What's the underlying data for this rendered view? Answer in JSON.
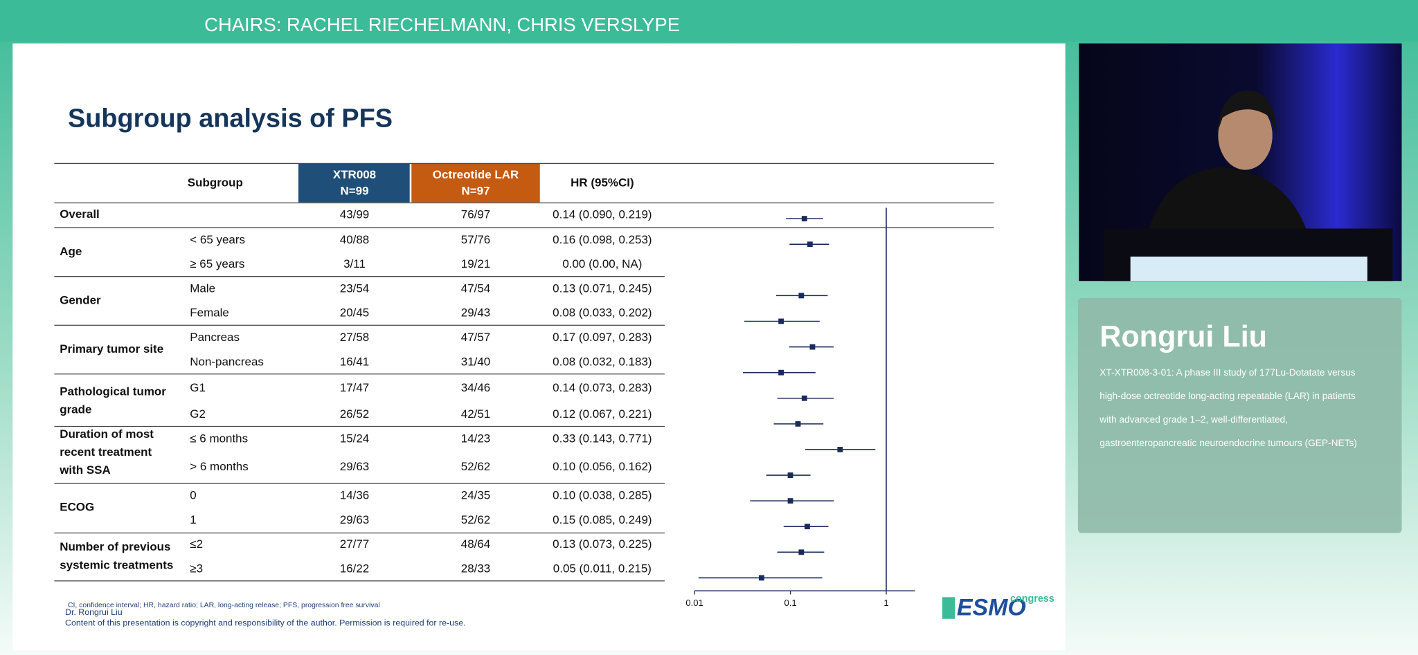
{
  "header": {
    "chairs": "CHAIRS: RACHEL RIECHELMANN, CHRIS VERSLYPE"
  },
  "slide": {
    "title": "Subgroup analysis of PFS",
    "table": {
      "columns": [
        [
          "Subgroup"
        ],
        [
          "XTR008",
          "N=99"
        ],
        [
          "Octreotide LAR",
          "N=97"
        ],
        [
          "HR (95%CI)"
        ]
      ],
      "groups": [
        {
          "name": "Overall",
          "rows": [
            {
              "n1": "43/99",
              "n2": "76/97"
            }
          ]
        },
        {
          "name": "Age",
          "rows": [
            {
              "subgroup": "< 65 years",
              "n1": "40/88",
              "n2": "57/76"
            },
            {
              "subgroup": "≥ 65 years",
              "n1": "3/11",
              "n2": "19/21"
            }
          ]
        },
        {
          "name": "Gender",
          "rows": [
            {
              "subgroup": "Male",
              "n1": "23/54",
              "n2": "47/54"
            },
            {
              "subgroup": "Female",
              "n1": "20/45",
              "n2": "29/43"
            }
          ]
        },
        {
          "name": "Primary tumor site",
          "rows": [
            {
              "subgroup": "Pancreas",
              "n1": "27/58",
              "n2": "47/57"
            },
            {
              "subgroup": "Non-pancreas",
              "n1": "16/41",
              "n2": "31/40"
            }
          ]
        },
        {
          "name": "Pathological tumor grade",
          "rows": [
            {
              "subgroup": "G1",
              "n1": "17/47",
              "n2": "34/46"
            },
            {
              "subgroup": "G2",
              "n1": "26/52",
              "n2": "42/51"
            }
          ]
        },
        {
          "name": "Duration of most recent treatment with SSA",
          "rows": [
            {
              "subgroup": "≤ 6 months",
              "n1": "15/24",
              "n2": "14/23"
            },
            {
              "subgroup": "> 6 months",
              "n1": "29/63",
              "n2": "52/62"
            }
          ]
        },
        {
          "name": "ECOG",
          "rows": [
            {
              "subgroup": "0",
              "n1": "14/36",
              "n2": "24/35"
            },
            {
              "subgroup": "1",
              "n1": "29/63",
              "n2": "52/62"
            }
          ]
        },
        {
          "name": "Number of previous systemic treatments",
          "rows": [
            {
              "subgroup": "≤2",
              "n1": "27/77",
              "n2": "48/64"
            },
            {
              "subgroup": "≥3",
              "n1": "16/22",
              "n2": "28/33"
            }
          ]
        }
      ]
    },
    "footnote": "CI, confidence interval; HR, hazard ratio; LAR, long-acting release; PFS, progression free survival",
    "author": "Dr. Rongrui Liu",
    "copyright": "Content of this presentation is copyright and responsibility of the author. Permission is required for re-use.",
    "logo": {
      "main": "ESMO",
      "sub": "congress"
    }
  },
  "chart_data": {
    "type": "forest",
    "values": [
      0.14,
      0.16,
      null,
      0.13,
      0.08,
      0.17,
      0.08,
      0.14,
      0.12,
      0.33,
      0.1,
      0.1,
      0.15,
      0.13,
      0.05
    ],
    "lower": [
      0.09,
      0.098,
      null,
      0.071,
      0.033,
      0.097,
      0.032,
      0.073,
      0.067,
      0.143,
      0.056,
      0.038,
      0.085,
      0.073,
      0.011
    ],
    "upper": [
      0.219,
      0.253,
      null,
      0.245,
      0.202,
      0.283,
      0.183,
      0.283,
      0.221,
      0.771,
      0.162,
      0.285,
      0.249,
      0.225,
      0.215
    ],
    "value_labels": [
      "0.14 (0.090, 0.219)",
      "0.16 (0.098, 0.253)",
      "0.00 (0.00, NA)",
      "0.13 (0.071, 0.245)",
      "0.08 (0.033, 0.202)",
      "0.17 (0.097, 0.283)",
      "0.08 (0.032, 0.183)",
      "0.14 (0.073, 0.283)",
      "0.12 (0.067, 0.221)",
      "0.33 (0.143, 0.771)",
      "0.10 (0.056, 0.162)",
      "0.10 (0.038, 0.285)",
      "0.15 (0.085, 0.249)",
      "0.13 (0.073, 0.225)",
      "0.05 (0.011, 0.215)"
    ],
    "xlim": [
      0.01,
      2
    ],
    "xticks": [
      0.01,
      0.1,
      1
    ],
    "log_x": true,
    "color": "#1a2a5c"
  },
  "speaker": {
    "name": "Rongrui Liu",
    "description": [
      "XT-XTR008-3-01: A phase III study of 177Lu-Dotatate versus",
      "high-dose octreotide long-acting repeatable (LAR) in patients",
      "with advanced grade 1–2, well-differentiated,",
      "gastroenteropancreatic neuroendocrine tumours (GEP-NETs)"
    ]
  }
}
